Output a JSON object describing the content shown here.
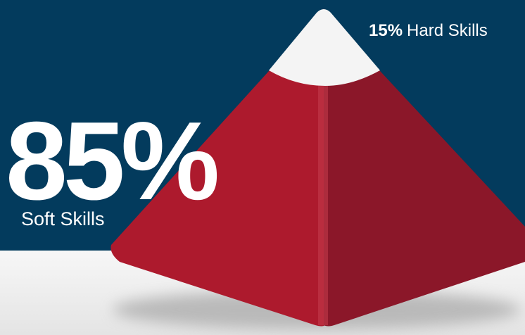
{
  "soft_skills": {
    "value": "85%",
    "label": "Soft Skills"
  },
  "hard_skills": {
    "value": "15%",
    "label": "Hard Skills"
  }
}
